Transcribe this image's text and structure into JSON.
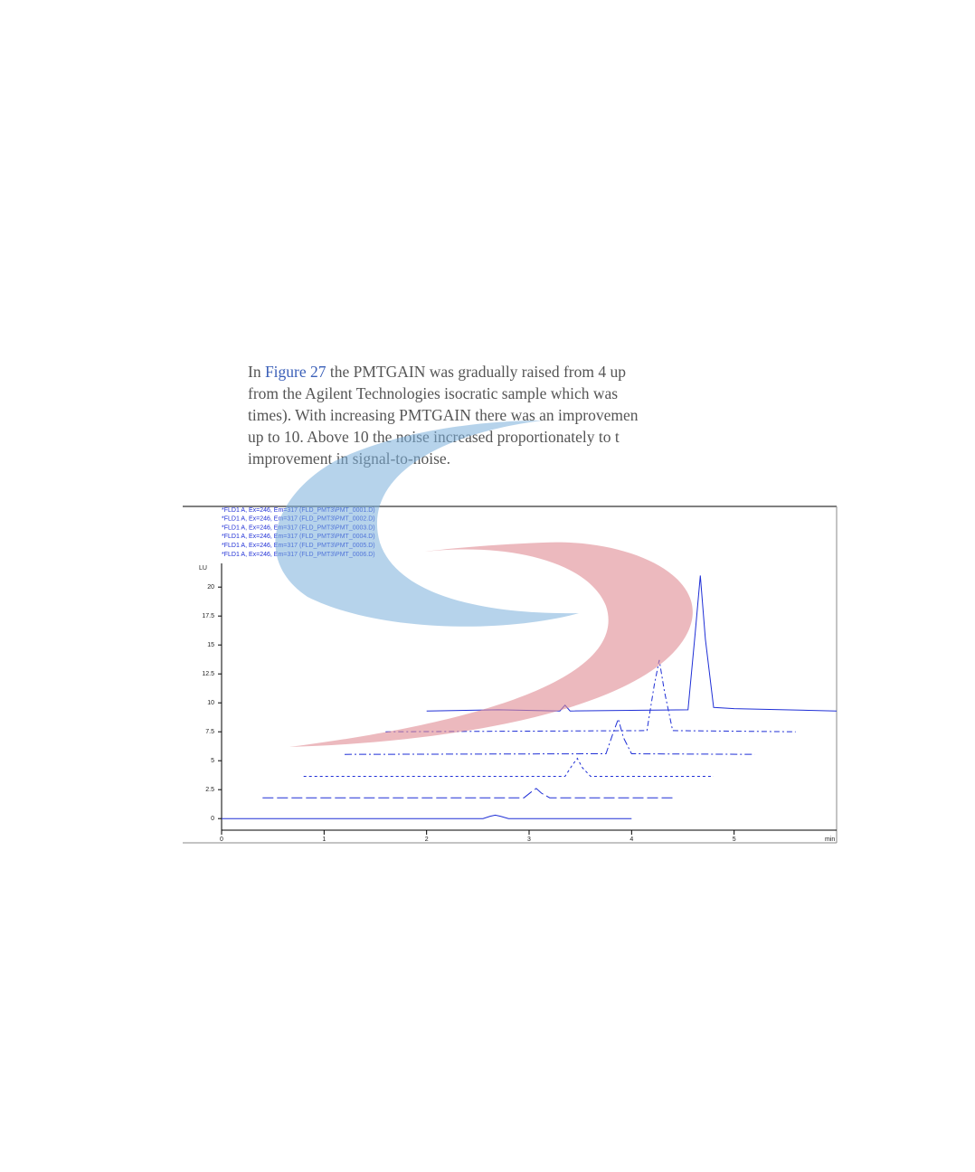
{
  "paragraph": {
    "lead": "In",
    "link": "Figure 27",
    "lines": [
      "the PMTGAIN was gradually raised from 4 up",
      "from the Agilent Technologies  isocratic sample which was",
      "times). With increasing PMTGAIN there was an improvemen",
      "up to 10. Above 10 the noise increased proportionately to t",
      "improvement in signal-to-noise."
    ]
  },
  "chart_data": {
    "type": "line",
    "x_label": "min",
    "y_label": "LU",
    "xlim": [
      0,
      6
    ],
    "ylim": [
      -1,
      22
    ],
    "xticks": [
      0,
      1,
      2,
      3,
      4,
      5
    ],
    "yticks": [
      0,
      2.5,
      5,
      7.5,
      10,
      12.5,
      15,
      17.5,
      20
    ],
    "series": [
      {
        "name": "*FLD1 A, Ex=246, Em=317 (FLD_PMT3\\PMT_0001.D)",
        "color": "#1f2fd6",
        "dash": "none",
        "x": [
          0,
          2.55,
          2.62,
          2.67,
          2.72,
          2.8,
          4.0
        ],
        "values": [
          0,
          0,
          0.2,
          0.3,
          0.2,
          0,
          0
        ]
      },
      {
        "name": "*FLD1 A, Ex=246, Em=317 (FLD_PMT3\\PMT_0002.D)",
        "color": "#1f2fd6",
        "dash": "12,4",
        "x": [
          0.4,
          2.95,
          3.02,
          3.07,
          3.12,
          3.2,
          4.4
        ],
        "values": [
          1.8,
          1.8,
          2.3,
          2.6,
          2.2,
          1.8,
          1.8
        ]
      },
      {
        "name": "*FLD1 A, Ex=246, Em=317 (FLD_PMT3\\PMT_0003.D)",
        "color": "#1f2fd6",
        "dash": "3,3",
        "x": [
          0.8,
          3.35,
          3.42,
          3.47,
          3.52,
          3.6,
          4.8
        ],
        "values": [
          3.65,
          3.65,
          4.6,
          5.2,
          4.4,
          3.65,
          3.65
        ]
      },
      {
        "name": "*FLD1 A, Ex=246, Em=317 (FLD_PMT3\\PMT_0004.D)",
        "color": "#1f2fd6",
        "dash": "8,3,2,3",
        "x": [
          1.2,
          3.75,
          3.82,
          3.87,
          3.92,
          4.0,
          5.2
        ],
        "values": [
          5.55,
          5.6,
          7.4,
          8.6,
          7.0,
          5.6,
          5.55
        ]
      },
      {
        "name": "*FLD1 A, Ex=246, Em=317 (FLD_PMT3\\PMT_0005.D)",
        "color": "#1f2fd6",
        "dash": "6,3,2,3",
        "x": [
          1.6,
          4.15,
          4.22,
          4.27,
          4.32,
          4.4,
          5.6
        ],
        "values": [
          7.5,
          7.6,
          11.5,
          13.7,
          11.0,
          7.6,
          7.5
        ]
      },
      {
        "name": "*FLD1 A, Ex=246, Em=317 (FLD_PMT3\\PMT_0006.D)",
        "color": "#1f2fd6",
        "dash": "none",
        "x": [
          2.0,
          2.7,
          3.3,
          3.35,
          3.4,
          4.55,
          4.62,
          4.67,
          4.72,
          4.8,
          5.0,
          6.0
        ],
        "values": [
          9.3,
          9.4,
          9.3,
          9.8,
          9.3,
          9.4,
          16,
          21,
          15.5,
          9.6,
          9.5,
          9.3
        ]
      }
    ]
  }
}
